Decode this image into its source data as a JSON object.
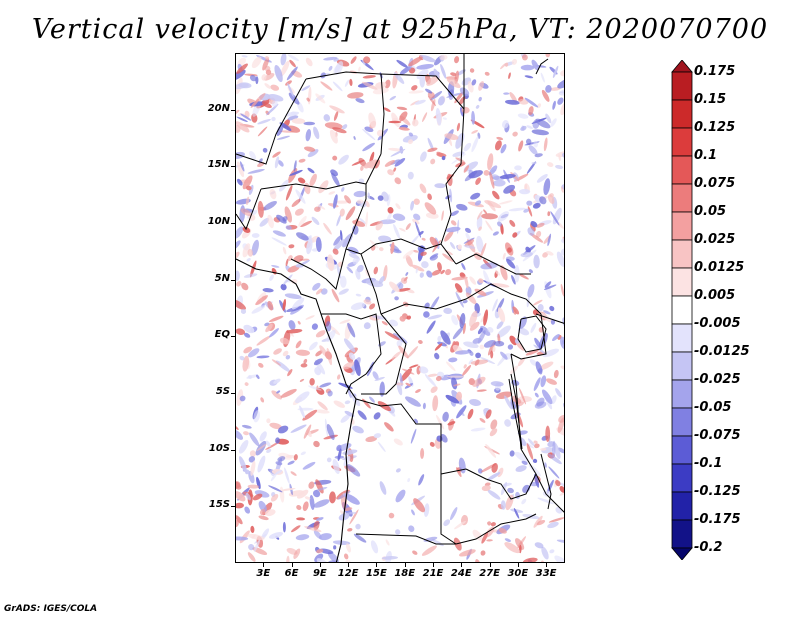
{
  "title": "Vertical velocity [m/s] at 925hPa, VT: 2020070700",
  "credit": "GrADS: IGES/COLA",
  "map": {
    "variable": "Vertical velocity",
    "units": "m/s",
    "level": "925hPa",
    "valid_time": "2020070700",
    "lat_labels": [
      "20N",
      "15N",
      "10N",
      "5N",
      "EQ",
      "5S",
      "10S",
      "15S"
    ],
    "lat_values": [
      20,
      15,
      10,
      5,
      0,
      -5,
      -10,
      -15
    ],
    "lon_labels": [
      "3E",
      "6E",
      "9E",
      "12E",
      "15E",
      "18E",
      "21E",
      "24E",
      "27E",
      "30E",
      "33E"
    ],
    "lon_values": [
      3,
      6,
      9,
      12,
      15,
      18,
      21,
      24,
      27,
      30,
      33
    ],
    "lat_range": [
      -20,
      25
    ],
    "lon_range": [
      0,
      35
    ]
  },
  "colorbar": {
    "labels": [
      "0.175",
      "0.15",
      "0.125",
      "0.1",
      "0.075",
      "0.05",
      "0.025",
      "0.0125",
      "0.005",
      "-0.005",
      "-0.0125",
      "-0.025",
      "-0.05",
      "-0.075",
      "-0.1",
      "-0.125",
      "-0.175",
      "-0.2"
    ],
    "colors": [
      "#a0141e",
      "#b91d22",
      "#cc2a2a",
      "#dc3c3c",
      "#e45858",
      "#ec7c7c",
      "#f3a0a0",
      "#f8c4c4",
      "#fce3e3",
      "#ffffff",
      "#e3e3fc",
      "#c5c5f4",
      "#a4a4ec",
      "#8080e2",
      "#5c5cd6",
      "#3c3cc4",
      "#2222a8",
      "#121288",
      "#06066a"
    ]
  },
  "colors": {
    "positive": "#e06060",
    "negative": "#6060e0",
    "border": "#000000"
  }
}
